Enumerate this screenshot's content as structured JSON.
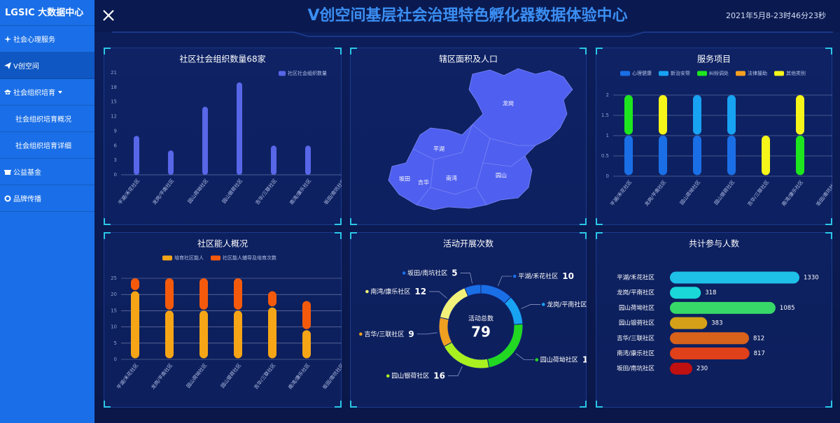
{
  "sidebar": {
    "title": "LGSIC 大数据中心",
    "menu": [
      "社会心理服务",
      "V创空间",
      "社会组织培育",
      "社会组织培育概况",
      "社会组织培育详细",
      "公益基金",
      "品牌传播"
    ],
    "active": 1
  },
  "header": {
    "title": "V创空间基层社会治理特色孵化器数据体验中心",
    "time": "2021年5月8-23时46分23秒"
  },
  "map": {
    "title": "辖区面积及人口",
    "regions": [
      "龙岗",
      "平湖",
      "坂田",
      "吉华",
      "南湾",
      "园山"
    ]
  },
  "chart_data": [
    {
      "type": "bar",
      "title": "社区社会组织数量68家",
      "categories": [
        "平湖/禾花社区",
        "龙岗/平南社区",
        "园山荷坳社区",
        "园山银荷社区",
        "吉华/三联社区",
        "南湾/康乐社区",
        "坂田/南坑社区"
      ],
      "series": [
        {
          "name": "社区社会组织数量",
          "color": "#5866e8",
          "values": [
            8,
            5,
            14,
            19,
            6,
            6,
            null
          ]
        }
      ],
      "ylim": [
        0,
        21
      ],
      "yticks": [
        0,
        3,
        6,
        9,
        12,
        15,
        18,
        21
      ],
      "grid": false
    },
    {
      "type": "stacked_bar",
      "title": "服务项目",
      "categories": [
        "平湖/禾花社区",
        "龙岗/平南社区",
        "园山荷坳社区",
        "园山银荷社区",
        "吉华/三联社区",
        "南湾/康乐社区",
        "坂田/南坑社区"
      ],
      "series": [
        {
          "name": "心理健康",
          "color": "#1a6fe6",
          "values": [
            1,
            1,
            1,
            1,
            0,
            0,
            null
          ]
        },
        {
          "name": "新治安帮",
          "color": "#18a2f2",
          "values": [
            0,
            0,
            1,
            1,
            0,
            0,
            null
          ]
        },
        {
          "name": "纠纷调处",
          "color": "#1ee61e",
          "values": [
            1,
            0,
            0,
            0,
            0,
            1,
            null
          ]
        },
        {
          "name": "法律援助",
          "color": "#f5a020",
          "values": [
            0,
            0,
            0,
            0,
            0,
            0,
            null
          ]
        },
        {
          "name": "其他类别",
          "color": "#f5f51a",
          "values": [
            0,
            1,
            0,
            0,
            1,
            1,
            null
          ]
        }
      ],
      "ylim": [
        0,
        2
      ],
      "yticks": [
        0,
        0.5,
        1,
        1.5,
        2
      ],
      "grid": true
    },
    {
      "type": "stacked_bar",
      "title": "社区能人概况",
      "categories": [
        "平湖/禾花社区",
        "龙岗/平南社区",
        "园山荷坳社区",
        "园山银荷社区",
        "吉华/三联社区",
        "南湾/康乐社区",
        "坂田/南坑社区"
      ],
      "series": [
        {
          "name": "培育社区能人",
          "color": "#f5a516",
          "values": [
            21,
            15,
            15,
            15,
            16,
            9,
            null
          ]
        },
        {
          "name": "社区能人辅导及培育次数",
          "color": "#f55a0c",
          "values": [
            4,
            10,
            10,
            10,
            5,
            9,
            null
          ]
        }
      ],
      "ylim": [
        0,
        25
      ],
      "yticks": [
        0,
        5,
        10,
        15,
        20,
        25
      ],
      "grid": true
    },
    {
      "type": "donut",
      "title": "活动开展次数",
      "categories": [
        "平湖/禾花社区",
        "龙岗/平南社区",
        "园山荷坳社区",
        "园山银荷社区",
        "吉华/三联社区",
        "南湾/康乐社区",
        "坂田/南坑社区"
      ],
      "values": [
        10,
        9,
        18,
        16,
        9,
        12,
        5
      ],
      "colors": [
        "#1a6fe6",
        "#18a2f2",
        "#22d822",
        "#a8f020",
        "#f0a020",
        "#f2f27a",
        "#1a6fe6"
      ],
      "center_label": "活动总数",
      "total": 79
    },
    {
      "type": "hbar",
      "title": "共计参与人数",
      "categories": [
        "平湖/禾花社区",
        "龙岗/平南社区",
        "园山荷坳社区",
        "园山银荷社区",
        "吉华/三联社区",
        "南湾/康乐社区",
        "坂田/南坑社区"
      ],
      "values": [
        1330,
        318,
        1085,
        383,
        812,
        817,
        230
      ],
      "colors": [
        "#1ec0e8",
        "#1ad8d8",
        "#38d868",
        "#d4a017",
        "#d8621a",
        "#e0401a",
        "#c01010"
      ]
    }
  ]
}
